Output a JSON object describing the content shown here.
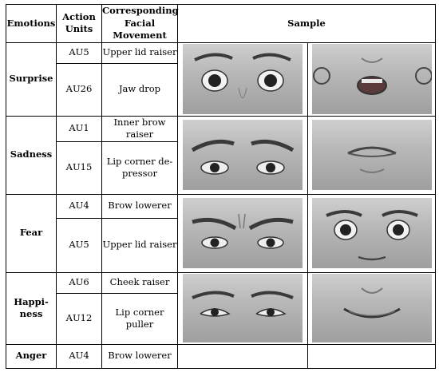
{
  "headers": {
    "emotions": "Emotions",
    "action_units": "Action Units",
    "movement": "Corresponding Facial Movement",
    "sample": "Sample"
  },
  "rows": [
    {
      "emotion": "Surprise",
      "aus": [
        {
          "au": "AU5",
          "movement": "Upper lid raiser"
        },
        {
          "au": "AU26",
          "movement": "Jaw drop"
        }
      ],
      "samples": [
        "eyes-wide",
        "mouth-open"
      ]
    },
    {
      "emotion": "Sadness",
      "aus": [
        {
          "au": "AU1",
          "movement": "Inner brow raiser"
        },
        {
          "au": "AU15",
          "movement": "Lip corner de-pressor"
        }
      ],
      "samples": [
        "brows-raised",
        "mouth-down"
      ]
    },
    {
      "emotion": "Fear",
      "aus": [
        {
          "au": "AU4",
          "movement": "Brow lowerer"
        },
        {
          "au": "AU5",
          "movement": "Upper lid raiser"
        }
      ],
      "samples": [
        "brows-lowered",
        "eyes-wide"
      ]
    },
    {
      "emotion": "Happi-ness",
      "aus": [
        {
          "au": "AU6",
          "movement": "Cheek raiser"
        },
        {
          "au": "AU12",
          "movement": "Lip corner puller"
        }
      ],
      "samples": [
        "eyes-cheek",
        "smile"
      ]
    },
    {
      "emotion": "Anger",
      "aus": [
        {
          "au": "AU4",
          "movement": "Brow lowerer"
        }
      ],
      "samples": []
    }
  ]
}
